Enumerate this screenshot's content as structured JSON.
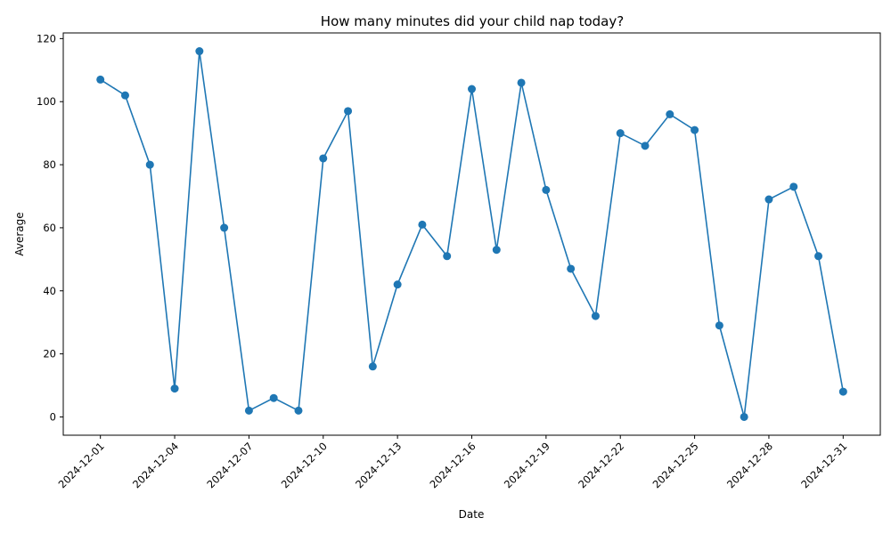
{
  "chart_data": {
    "type": "line",
    "title": "How many minutes did your child nap today?",
    "xlabel": "Date",
    "ylabel": "Average",
    "x": [
      "2024-12-01",
      "2024-12-02",
      "2024-12-03",
      "2024-12-04",
      "2024-12-05",
      "2024-12-06",
      "2024-12-07",
      "2024-12-08",
      "2024-12-09",
      "2024-12-10",
      "2024-12-11",
      "2024-12-12",
      "2024-12-13",
      "2024-12-14",
      "2024-12-15",
      "2024-12-16",
      "2024-12-17",
      "2024-12-18",
      "2024-12-19",
      "2024-12-20",
      "2024-12-21",
      "2024-12-22",
      "2024-12-23",
      "2024-12-24",
      "2024-12-25",
      "2024-12-26",
      "2024-12-27",
      "2024-12-28",
      "2024-12-29",
      "2024-12-30",
      "2024-12-31"
    ],
    "series": [
      {
        "values": [
          107,
          102,
          80,
          9,
          116,
          60,
          2,
          6,
          2,
          82,
          97,
          16,
          42,
          61,
          51,
          104,
          53,
          106,
          72,
          47,
          32,
          90,
          86,
          96,
          91,
          29,
          0,
          69,
          73,
          51,
          8
        ],
        "color": "#1f77b4",
        "marker": "circle"
      }
    ],
    "xticks": [
      "2024-12-01",
      "2024-12-04",
      "2024-12-07",
      "2024-12-10",
      "2024-12-13",
      "2024-12-16",
      "2024-12-19",
      "2024-12-22",
      "2024-12-25",
      "2024-12-28",
      "2024-12-31"
    ],
    "yticks": [
      0,
      20,
      40,
      60,
      80,
      100,
      120
    ],
    "xlim": [
      "2024-11-29.5",
      "2025-01-01.5"
    ],
    "ylim": [
      -5.8,
      121.8
    ],
    "grid": false,
    "legend": false
  }
}
